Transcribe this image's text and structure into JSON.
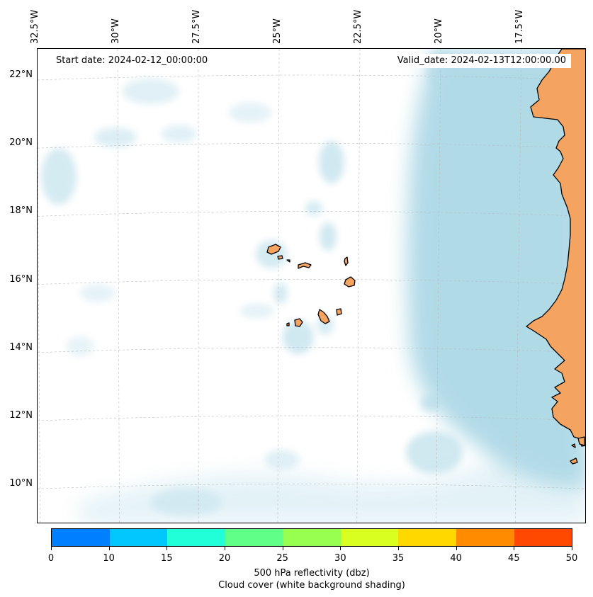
{
  "map": {
    "start_label": "Start date: 2024-02-12_00:00:00",
    "valid_label": "Valid_date: 2024-02-13T12:00:00.00",
    "longitude_labels": [
      {
        "lon": -32.5,
        "text": "32.5°W"
      },
      {
        "lon": -30.0,
        "text": "30°W"
      },
      {
        "lon": -27.5,
        "text": "27.5°W"
      },
      {
        "lon": -25.0,
        "text": "25°W"
      },
      {
        "lon": -22.5,
        "text": "22.5°W"
      },
      {
        "lon": -20.0,
        "text": "20°W"
      },
      {
        "lon": -17.5,
        "text": "17.5°W"
      }
    ],
    "latitude_labels": [
      {
        "lat": 22,
        "text": "22°N"
      },
      {
        "lat": 20,
        "text": "20°N"
      },
      {
        "lat": 18,
        "text": "18°N"
      },
      {
        "lat": 16,
        "text": "16°N"
      },
      {
        "lat": 14,
        "text": "14°N"
      },
      {
        "lat": 12,
        "text": "12°N"
      },
      {
        "lat": 10,
        "text": "10°N"
      }
    ],
    "colors": {
      "land": "#f4a460",
      "cloud": "#add8e6",
      "coastline": "#000000",
      "gridline": "#bbbbbb"
    }
  },
  "colorbar": {
    "ticks": [
      "0",
      "10",
      "15",
      "20",
      "25",
      "30",
      "35",
      "40",
      "45",
      "50"
    ],
    "colors": [
      "#0080ff",
      "#00c8ff",
      "#20ffd8",
      "#60ff88",
      "#98ff50",
      "#d8ff20",
      "#ffd800",
      "#ff8c00",
      "#ff4800"
    ],
    "label_line1": "500 hPa reflectivity (dbz)",
    "label_line2": "Cloud cover (white background shading)"
  }
}
